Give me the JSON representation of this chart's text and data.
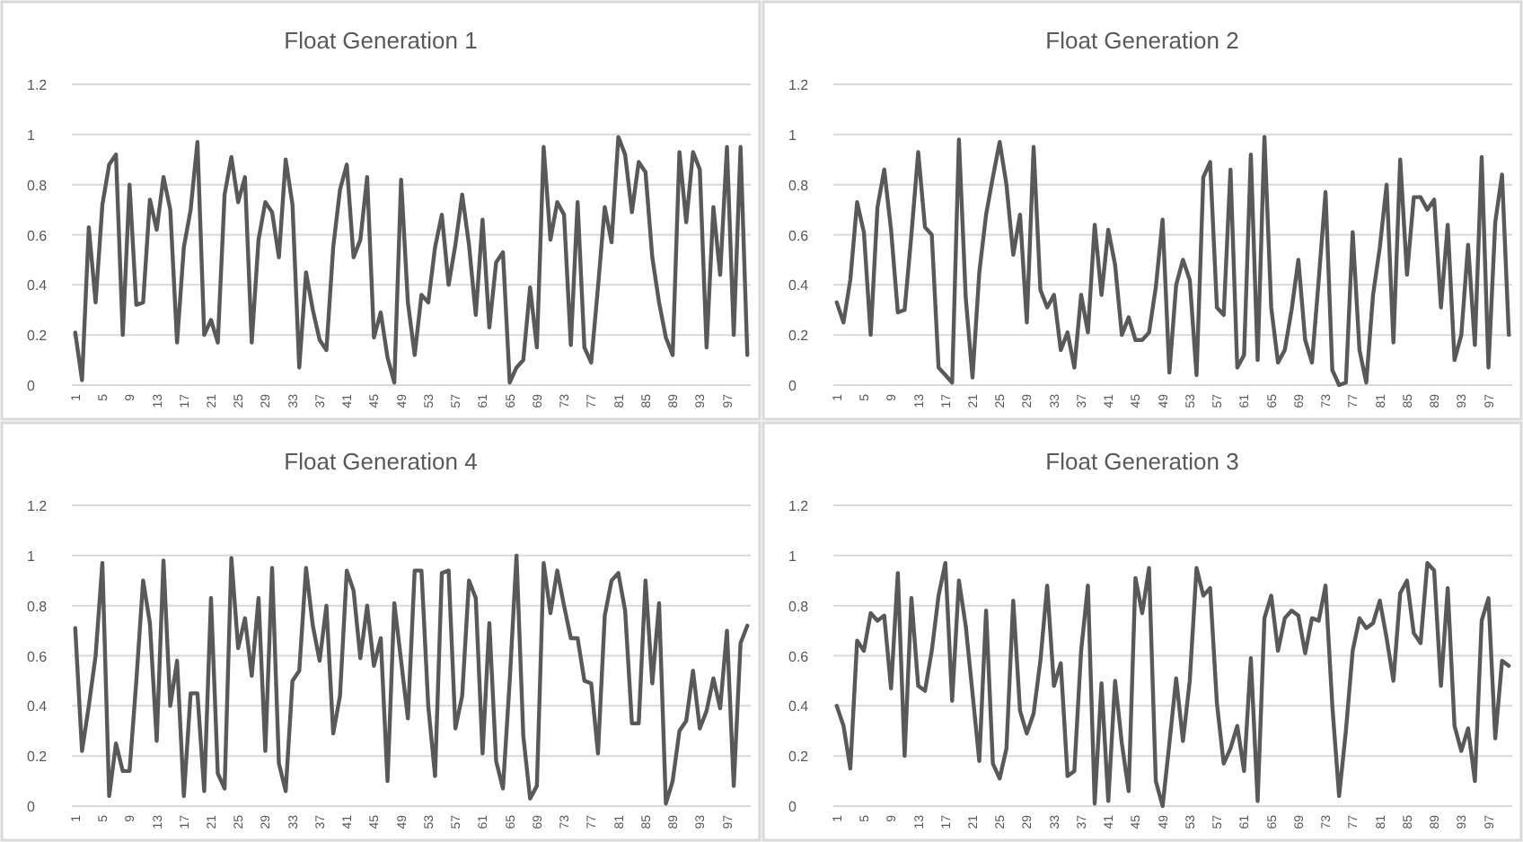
{
  "chart_data": [
    {
      "type": "line",
      "title": "Float Generation 1",
      "categories": [
        "1",
        null,
        null,
        null,
        "5",
        null,
        null,
        null,
        "9",
        null,
        null,
        null,
        "13",
        null,
        null,
        null,
        "17",
        null,
        null,
        null,
        "21",
        null,
        null,
        null,
        "25",
        null,
        null,
        null,
        "29",
        null,
        null,
        null,
        "33",
        null,
        null,
        null,
        "37",
        null,
        null,
        null,
        "41",
        null,
        null,
        null,
        "45",
        null,
        null,
        null,
        "49",
        null,
        null,
        null,
        "53",
        null,
        null,
        null,
        "57",
        null,
        null,
        null,
        "61",
        null,
        null,
        null,
        "65",
        null,
        null,
        null,
        "69",
        null,
        null,
        null,
        "73",
        null,
        null,
        null,
        "77",
        null,
        null,
        null,
        "81",
        null,
        null,
        null,
        "85",
        null,
        null,
        null,
        "89",
        null,
        null,
        null,
        "93",
        null,
        null,
        null,
        "97",
        null,
        null,
        null
      ],
      "series": [
        {
          "color": "#595959",
          "values": [
            0.21,
            0.02,
            0.63,
            0.33,
            0.72,
            0.88,
            0.92,
            0.2,
            0.8,
            0.32,
            0.33,
            0.74,
            0.62,
            0.83,
            0.7,
            0.17,
            0.55,
            0.7,
            0.97,
            0.2,
            0.26,
            0.17,
            0.76,
            0.91,
            0.73,
            0.83,
            0.17,
            0.58,
            0.73,
            0.69,
            0.51,
            0.9,
            0.72,
            0.07,
            0.45,
            0.3,
            0.18,
            0.14,
            0.55,
            0.78,
            0.88,
            0.51,
            0.58,
            0.83,
            0.19,
            0.29,
            0.11,
            0.01,
            0.82,
            0.33,
            0.12,
            0.36,
            0.33,
            0.55,
            0.68,
            0.4,
            0.56,
            0.76,
            0.56,
            0.28,
            0.66,
            0.23,
            0.49,
            0.53,
            0.01,
            0.07,
            0.1,
            0.39,
            0.15,
            0.95,
            0.58,
            0.73,
            0.68,
            0.16,
            0.73,
            0.15,
            0.09,
            0.39,
            0.71,
            0.57,
            0.99,
            0.92,
            0.69,
            0.89,
            0.85,
            0.51,
            0.33,
            0.19,
            0.12,
            0.93,
            0.65,
            0.93,
            0.86,
            0.15,
            0.71,
            0.44,
            0.95,
            0.2,
            0.95,
            0.12
          ]
        }
      ],
      "ylim": [
        0,
        1.2
      ],
      "yticks": [
        0,
        0.2,
        0.4,
        0.6,
        0.8,
        1,
        1.2
      ],
      "grid": "y",
      "line_style": "solid"
    },
    {
      "type": "line",
      "title": "Float Generation 2",
      "categories": [
        "1",
        null,
        null,
        null,
        "5",
        null,
        null,
        null,
        "9",
        null,
        null,
        null,
        "13",
        null,
        null,
        null,
        "17",
        null,
        null,
        null,
        "21",
        null,
        null,
        null,
        "25",
        null,
        null,
        null,
        "29",
        null,
        null,
        null,
        "33",
        null,
        null,
        null,
        "37",
        null,
        null,
        null,
        "41",
        null,
        null,
        null,
        "45",
        null,
        null,
        null,
        "49",
        null,
        null,
        null,
        "53",
        null,
        null,
        null,
        "57",
        null,
        null,
        null,
        "61",
        null,
        null,
        null,
        "65",
        null,
        null,
        null,
        "69",
        null,
        null,
        null,
        "73",
        null,
        null,
        null,
        "77",
        null,
        null,
        null,
        "81",
        null,
        null,
        null,
        "85",
        null,
        null,
        null,
        "89",
        null,
        null,
        null,
        "93",
        null,
        null,
        null,
        "97",
        null,
        null,
        null
      ],
      "series": [
        {
          "color": "#595959",
          "values": [
            0.33,
            0.25,
            0.42,
            0.73,
            0.61,
            0.2,
            0.71,
            0.86,
            0.62,
            0.29,
            0.3,
            0.6,
            0.93,
            0.63,
            0.6,
            0.07,
            0.04,
            0.01,
            0.98,
            0.35,
            0.03,
            0.45,
            0.68,
            0.83,
            0.97,
            0.8,
            0.52,
            0.68,
            0.25,
            0.95,
            0.38,
            0.31,
            0.36,
            0.14,
            0.21,
            0.07,
            0.36,
            0.21,
            0.64,
            0.36,
            0.62,
            0.48,
            0.2,
            0.27,
            0.18,
            0.18,
            0.21,
            0.39,
            0.66,
            0.05,
            0.4,
            0.5,
            0.42,
            0.04,
            0.83,
            0.89,
            0.31,
            0.28,
            0.86,
            0.07,
            0.12,
            0.92,
            0.1,
            0.99,
            0.31,
            0.09,
            0.14,
            0.3,
            0.5,
            0.18,
            0.09,
            0.42,
            0.77,
            0.06,
            0,
            0.01,
            0.61,
            0.14,
            0.01,
            0.36,
            0.55,
            0.8,
            0.17,
            0.9,
            0.44,
            0.75,
            0.75,
            0.7,
            0.74,
            0.31,
            0.64,
            0.1,
            0.2,
            0.56,
            0.16,
            0.91,
            0.07,
            0.65,
            0.84,
            0.2
          ]
        }
      ],
      "ylim": [
        0,
        1.2
      ],
      "yticks": [
        0,
        0.2,
        0.4,
        0.6,
        0.8,
        1,
        1.2
      ],
      "grid": "y",
      "line_style": "solid"
    },
    {
      "type": "line",
      "title": "Float Generation 4",
      "categories": [
        "1",
        null,
        null,
        null,
        "5",
        null,
        null,
        null,
        "9",
        null,
        null,
        null,
        "13",
        null,
        null,
        null,
        "17",
        null,
        null,
        null,
        "21",
        null,
        null,
        null,
        "25",
        null,
        null,
        null,
        "29",
        null,
        null,
        null,
        "33",
        null,
        null,
        null,
        "37",
        null,
        null,
        null,
        "41",
        null,
        null,
        null,
        "45",
        null,
        null,
        null,
        "49",
        null,
        null,
        null,
        "53",
        null,
        null,
        null,
        "57",
        null,
        null,
        null,
        "61",
        null,
        null,
        null,
        "65",
        null,
        null,
        null,
        "69",
        null,
        null,
        null,
        "73",
        null,
        null,
        null,
        "77",
        null,
        null,
        null,
        "81",
        null,
        null,
        null,
        "85",
        null,
        null,
        null,
        "89",
        null,
        null,
        null,
        "93",
        null,
        null,
        null,
        "97",
        null,
        null,
        null
      ],
      "series": [
        {
          "color": "#595959",
          "values": [
            0.71,
            0.22,
            0.4,
            0.6,
            0.97,
            0.04,
            0.25,
            0.14,
            0.14,
            0.5,
            0.9,
            0.73,
            0.26,
            0.98,
            0.4,
            0.58,
            0.04,
            0.45,
            0.45,
            0.06,
            0.83,
            0.13,
            0.07,
            0.99,
            0.63,
            0.75,
            0.52,
            0.83,
            0.22,
            0.95,
            0.17,
            0.06,
            0.5,
            0.54,
            0.95,
            0.72,
            0.58,
            0.8,
            0.29,
            0.44,
            0.94,
            0.86,
            0.59,
            0.8,
            0.56,
            0.67,
            0.1,
            0.81,
            0.58,
            0.35,
            0.94,
            0.94,
            0.4,
            0.12,
            0.93,
            0.94,
            0.31,
            0.44,
            0.9,
            0.83,
            0.21,
            0.73,
            0.18,
            0.07,
            0.5,
            1,
            0.28,
            0.03,
            0.08,
            0.97,
            0.77,
            0.94,
            0.8,
            0.67,
            0.67,
            0.5,
            0.49,
            0.21,
            0.76,
            0.9,
            0.93,
            0.78,
            0.33,
            0.33,
            0.9,
            0.49,
            0.81,
            0.01,
            0.1,
            0.3,
            0.34,
            0.54,
            0.31,
            0.38,
            0.51,
            0.39,
            0.7,
            0.08,
            0.65,
            0.72
          ]
        }
      ],
      "ylim": [
        0,
        1.2
      ],
      "yticks": [
        0,
        0.2,
        0.4,
        0.6,
        0.8,
        1,
        1.2
      ],
      "grid": "y",
      "line_style": "solid"
    },
    {
      "type": "line",
      "title": "Float Generation 3",
      "categories": [
        "1",
        null,
        null,
        null,
        "5",
        null,
        null,
        null,
        "9",
        null,
        null,
        null,
        "13",
        null,
        null,
        null,
        "17",
        null,
        null,
        null,
        "21",
        null,
        null,
        null,
        "25",
        null,
        null,
        null,
        "29",
        null,
        null,
        null,
        "33",
        null,
        null,
        null,
        "37",
        null,
        null,
        null,
        "41",
        null,
        null,
        null,
        "45",
        null,
        null,
        null,
        "49",
        null,
        null,
        null,
        "53",
        null,
        null,
        null,
        "57",
        null,
        null,
        null,
        "61",
        null,
        null,
        null,
        "65",
        null,
        null,
        null,
        "69",
        null,
        null,
        null,
        "73",
        null,
        null,
        null,
        "77",
        null,
        null,
        null,
        "81",
        null,
        null,
        null,
        "85",
        null,
        null,
        null,
        "89",
        null,
        null,
        null,
        "93",
        null,
        null,
        null,
        "97",
        null,
        null,
        null
      ],
      "series": [
        {
          "color": "#595959",
          "values": [
            0.4,
            0.32,
            0.15,
            0.66,
            0.62,
            0.77,
            0.74,
            0.76,
            0.47,
            0.93,
            0.2,
            0.83,
            0.48,
            0.46,
            0.62,
            0.84,
            0.97,
            0.42,
            0.9,
            0.72,
            0.45,
            0.18,
            0.78,
            0.17,
            0.11,
            0.23,
            0.82,
            0.38,
            0.29,
            0.37,
            0.58,
            0.88,
            0.48,
            0.57,
            0.12,
            0.14,
            0.62,
            0.88,
            0.01,
            0.49,
            0.02,
            0.5,
            0.25,
            0.06,
            0.91,
            0.77,
            0.95,
            0.1,
            0,
            0.25,
            0.51,
            0.26,
            0.5,
            0.95,
            0.84,
            0.87,
            0.41,
            0.17,
            0.23,
            0.32,
            0.14,
            0.59,
            0.02,
            0.75,
            0.84,
            0.62,
            0.75,
            0.78,
            0.76,
            0.61,
            0.75,
            0.74,
            0.88,
            0.4,
            0.04,
            0.3,
            0.62,
            0.75,
            0.71,
            0.73,
            0.82,
            0.67,
            0.5,
            0.85,
            0.9,
            0.69,
            0.65,
            0.97,
            0.94,
            0.48,
            0.87,
            0.32,
            0.22,
            0.31,
            0.1,
            0.74,
            0.83,
            0.27,
            0.58,
            0.56
          ]
        }
      ],
      "ylim": [
        0,
        1.2
      ],
      "yticks": [
        0,
        0.2,
        0.4,
        0.6,
        0.8,
        1,
        1.2
      ],
      "grid": "y",
      "line_style": "solid"
    }
  ]
}
